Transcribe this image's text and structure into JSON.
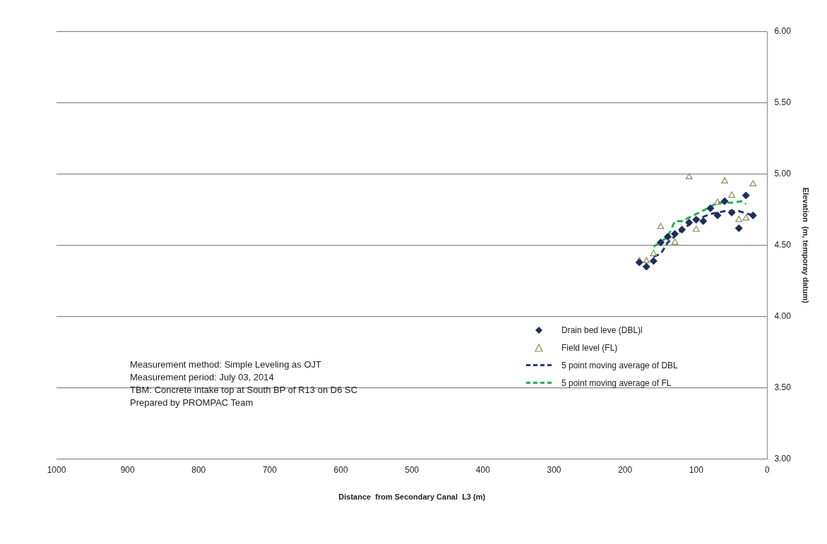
{
  "chart_data": {
    "type": "scatter",
    "xlabel": "Distance  from Secondary Canal  L3 (m)",
    "ylabel": "Elevation  (m, temporay datum)",
    "xlim": [
      1000,
      0
    ],
    "xticks": [
      1000,
      900,
      800,
      700,
      600,
      500,
      400,
      300,
      200,
      100,
      0
    ],
    "ylim": [
      3,
      6
    ],
    "yticks": [
      {
        "value": 3,
        "label": "3.00"
      },
      {
        "value": 3.5,
        "label": "3.50"
      },
      {
        "value": 4,
        "label": "4.00"
      },
      {
        "value": 4.5,
        "label": "4.50"
      },
      {
        "value": 5,
        "label": "5.00"
      },
      {
        "value": 5.5,
        "label": "5.50"
      },
      {
        "value": 6,
        "label": "6.00"
      }
    ],
    "grid": "y",
    "legend": "bottom right",
    "series": [
      {
        "name": "Drain bed leve (DBL)l",
        "type": "scatter",
        "marker": "diamond",
        "color": "#1f2d5c",
        "x": [
          180,
          170,
          160,
          150,
          140,
          130,
          120,
          110,
          100,
          90,
          80,
          70,
          60,
          50,
          40,
          30,
          20
        ],
        "values": [
          4.38,
          4.35,
          4.39,
          4.52,
          4.56,
          4.58,
          4.61,
          4.66,
          4.68,
          4.67,
          4.76,
          4.71,
          4.81,
          4.73,
          4.62,
          4.85,
          4.71
        ]
      },
      {
        "name": "Field level (FL)",
        "type": "scatter",
        "marker": "triangle",
        "color": "#8c8c5a",
        "x": [
          180,
          170,
          160,
          150,
          140,
          130,
          120,
          110,
          100,
          90,
          80,
          70,
          60,
          50,
          40,
          30,
          20
        ],
        "values": [
          4.39,
          4.39,
          4.44,
          4.63,
          null,
          4.52,
          null,
          4.98,
          4.61,
          null,
          null,
          4.8,
          4.95,
          4.85,
          4.68,
          4.69,
          4.93
        ]
      },
      {
        "name": "5 point moving average of DBL",
        "type": "line",
        "marker": "none",
        "line_style": "dashed",
        "color": "#1f3a7a",
        "x": [
          160,
          150,
          140,
          120,
          100,
          80,
          60,
          40,
          20
        ],
        "values": [
          4.42,
          4.44,
          4.52,
          4.61,
          4.68,
          4.72,
          4.74,
          4.74,
          4.71
        ]
      },
      {
        "name": "5 point moving average of FL",
        "type": "line",
        "marker": "none",
        "line_style": "dashed",
        "color": "#22b04b",
        "x": [
          160,
          140,
          130,
          120,
          100,
          80,
          70,
          50,
          35,
          30
        ],
        "values": [
          4.49,
          4.56,
          4.67,
          4.67,
          4.72,
          4.77,
          4.8,
          4.8,
          4.81,
          4.79
        ]
      }
    ],
    "annotations": [
      "Measurement method: Simple Leveling as OJT",
      "Measurement period: July 03, 2014",
      "TBM: Concrete intake top at South BP of R13 on D6 SC",
      "Prepared by PROMPAC Team"
    ]
  }
}
